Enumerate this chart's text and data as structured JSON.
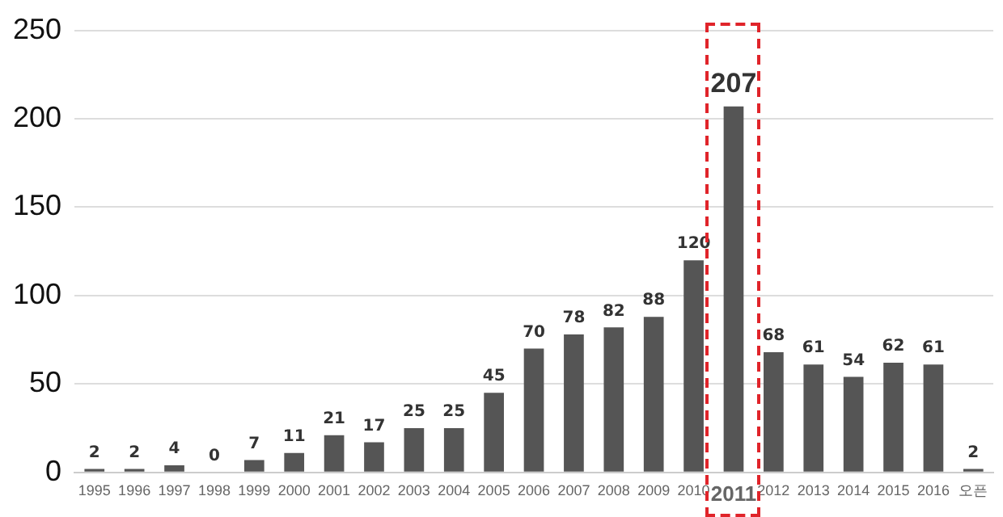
{
  "chart_data": {
    "type": "bar",
    "categories": [
      "1995",
      "1996",
      "1997",
      "1998",
      "1999",
      "2000",
      "2001",
      "2002",
      "2003",
      "2004",
      "2005",
      "2006",
      "2007",
      "2008",
      "2009",
      "2010",
      "2011",
      "2012",
      "2013",
      "2014",
      "2015",
      "2016",
      "오픈"
    ],
    "values": [
      2,
      2,
      4,
      0,
      7,
      11,
      21,
      17,
      25,
      25,
      45,
      70,
      78,
      82,
      88,
      120,
      207,
      68,
      61,
      54,
      62,
      61,
      2
    ],
    "color": "#555555",
    "ylim": [
      0,
      250
    ],
    "yticks": [
      0,
      50,
      100,
      150,
      200,
      250
    ],
    "grid": "y",
    "data_labels": true
  }
}
